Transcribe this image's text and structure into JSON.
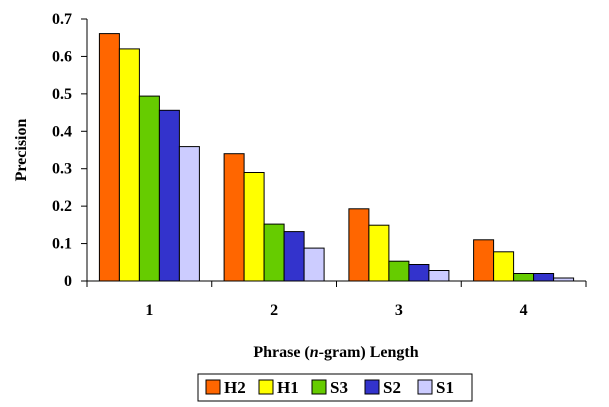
{
  "chart_data": {
    "type": "bar",
    "categories": [
      "1",
      "2",
      "3",
      "4"
    ],
    "series": [
      {
        "name": "H2",
        "color": "#FF6600",
        "values": [
          0.661,
          0.34,
          0.193,
          0.11
        ]
      },
      {
        "name": "H1",
        "color": "#FFFF00",
        "values": [
          0.62,
          0.29,
          0.149,
          0.078
        ]
      },
      {
        "name": "S3",
        "color": "#66CC00",
        "values": [
          0.494,
          0.152,
          0.053,
          0.02
        ]
      },
      {
        "name": "S2",
        "color": "#3333CC",
        "values": [
          0.456,
          0.132,
          0.044,
          0.02
        ]
      },
      {
        "name": "S1",
        "color": "#CCCCFF",
        "values": [
          0.359,
          0.088,
          0.028,
          0.008
        ]
      }
    ],
    "yticks": [
      "0",
      "0.1",
      "0.2",
      "0.3",
      "0.4",
      "0.5",
      "0.6",
      "0.7"
    ],
    "ylim": [
      0,
      0.7
    ],
    "ylabel": "Precision",
    "xlabel_parts": [
      "Phrase (",
      "n",
      "-gram) Length"
    ],
    "grid": false,
    "legend_position": "bottom"
  }
}
